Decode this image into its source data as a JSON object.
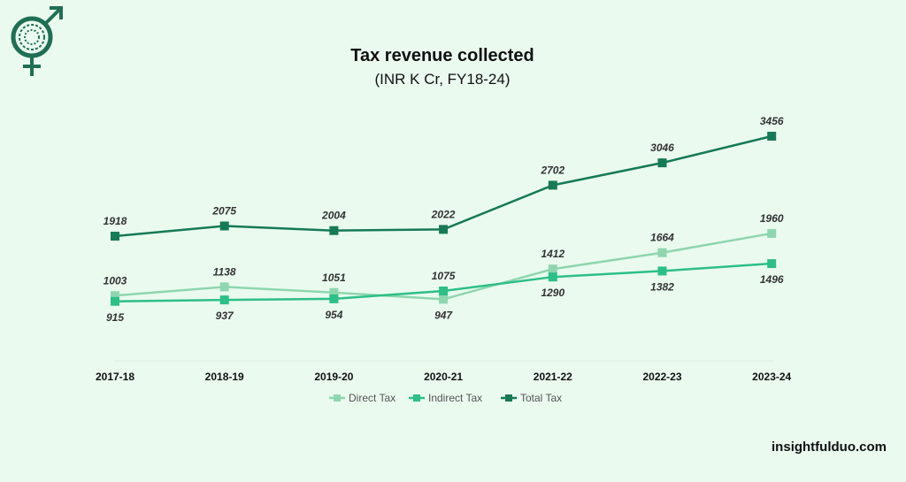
{
  "brand": {
    "watermark": "insightfulduo.com",
    "logo_icon": "gender-symbol-globe-icon"
  },
  "chart_data": {
    "type": "line",
    "title": "Tax revenue collected",
    "subtitle": "(INR K Cr, FY18-24)",
    "categories": [
      "2017-18",
      "2018-19",
      "2019-20",
      "2020-21",
      "2021-22",
      "2022-23",
      "2023-24"
    ],
    "series": [
      {
        "name": "Direct Tax",
        "color": "#8ed6ae",
        "values": [
          1003,
          1138,
          1051,
          947,
          1412,
          1664,
          1960
        ]
      },
      {
        "name": "Indirect Tax",
        "color": "#2cbf86",
        "values": [
          915,
          937,
          954,
          1075,
          1290,
          1382,
          1496
        ]
      },
      {
        "name": "Total Tax",
        "color": "#157a55",
        "values": [
          1918,
          2075,
          2004,
          2022,
          2702,
          3046,
          3456
        ]
      }
    ],
    "ylim": [
      0,
      3800
    ],
    "grid": false,
    "legend": "bottom"
  }
}
